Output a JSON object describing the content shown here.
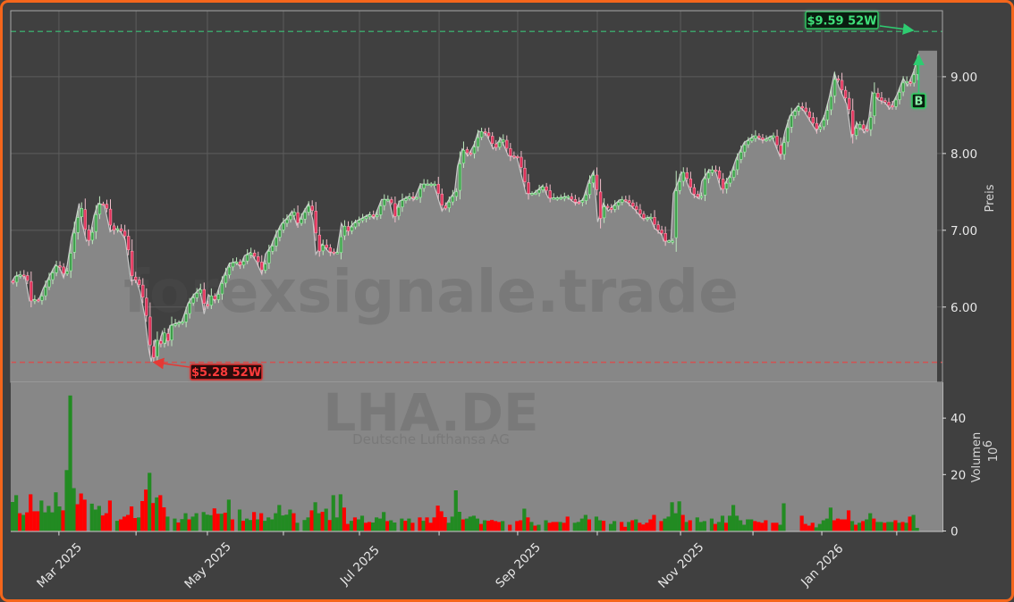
{
  "chart": {
    "watermark": "forexsignale.trade",
    "ticker_watermark": "LHA.DE",
    "company_watermark": "Deutsche Lufthansa AG"
  },
  "chart_data": [
    {
      "type": "area",
      "overlay": "candlestick",
      "title": "LHA.DE",
      "subtitle": "Deutsche Lufthansa AG",
      "xlabel": "",
      "ylabel": "Preis",
      "ylim": [
        5.02,
        9.86
      ],
      "grid": true,
      "y_tick_values": [
        6,
        7,
        8,
        9
      ],
      "y_ticks": [
        "6.00",
        "7.00",
        "8.00",
        "9.00"
      ],
      "x_ticks": [
        13.2,
        34.6,
        54.4,
        75.5,
        96.6,
        118.7,
        140.5,
        162.6,
        185.7,
        205.8,
        224.9,
        245.7
      ],
      "x_tick_labels": [
        "Mar 2025",
        "",
        "May 2025",
        "",
        "Jul 2025",
        "",
        "Sep 2025",
        "",
        "Nov 2025",
        "",
        "Jan 2026",
        ""
      ],
      "close_points": [
        [
          0,
          6.32
        ],
        [
          1,
          6.4
        ],
        [
          2.2,
          6.42
        ],
        [
          3.8,
          6.4
        ],
        [
          5,
          6.08
        ],
        [
          6.3,
          6.1
        ],
        [
          7.5,
          6.08
        ],
        [
          8.8,
          6.24
        ],
        [
          10.5,
          6.4
        ],
        [
          12.2,
          6.55
        ],
        [
          13.4,
          6.51
        ],
        [
          14.5,
          6.38
        ],
        [
          15.5,
          6.55
        ],
        [
          16.7,
          6.91
        ],
        [
          17.5,
          7.05
        ],
        [
          18.8,
          7.35
        ],
        [
          19.6,
          7.09
        ],
        [
          20.8,
          6.86
        ],
        [
          21.7,
          6.9
        ],
        [
          22.9,
          7.19
        ],
        [
          24.1,
          7.35
        ],
        [
          25.8,
          7.33
        ],
        [
          27.4,
          6.98
        ],
        [
          28.7,
          7.03
        ],
        [
          30.3,
          6.98
        ],
        [
          31.6,
          6.88
        ],
        [
          33.2,
          6.34
        ],
        [
          34.5,
          6.36
        ],
        [
          35.7,
          6.2
        ],
        [
          37,
          5.89
        ],
        [
          38.2,
          5.43
        ],
        [
          38.8,
          5.29
        ],
        [
          39.9,
          5.58
        ],
        [
          40.7,
          5.47
        ],
        [
          41.9,
          5.68
        ],
        [
          42.8,
          5.52
        ],
        [
          44,
          5.76
        ],
        [
          45.7,
          5.79
        ],
        [
          47.3,
          5.81
        ],
        [
          49,
          6.05
        ],
        [
          50.6,
          6.16
        ],
        [
          52.3,
          6.24
        ],
        [
          53.5,
          5.91
        ],
        [
          54.7,
          6.16
        ],
        [
          56.4,
          6.08
        ],
        [
          58.1,
          6.32
        ],
        [
          60.5,
          6.57
        ],
        [
          62.2,
          6.59
        ],
        [
          63.4,
          6.53
        ],
        [
          64.7,
          6.67
        ],
        [
          66.3,
          6.71
        ],
        [
          68,
          6.59
        ],
        [
          69.5,
          6.43
        ],
        [
          70.5,
          6.69
        ],
        [
          72.1,
          6.8
        ],
        [
          73.3,
          6.94
        ],
        [
          75,
          7.09
        ],
        [
          76.7,
          7.17
        ],
        [
          77.9,
          7.25
        ],
        [
          79.2,
          7.07
        ],
        [
          81.2,
          7.25
        ],
        [
          82.5,
          7.35
        ],
        [
          83.7,
          7.13
        ],
        [
          84.5,
          6.69
        ],
        [
          86.2,
          6.82
        ],
        [
          88.2,
          6.71
        ],
        [
          90.3,
          6.71
        ],
        [
          91.6,
          7.09
        ],
        [
          92.8,
          6.98
        ],
        [
          95.3,
          7.11
        ],
        [
          97.8,
          7.17
        ],
        [
          99.4,
          7.21
        ],
        [
          100.6,
          7.15
        ],
        [
          102.7,
          7.4
        ],
        [
          104.8,
          7.4
        ],
        [
          105.9,
          7.17
        ],
        [
          107.7,
          7.38
        ],
        [
          110.2,
          7.44
        ],
        [
          111.8,
          7.4
        ],
        [
          113.5,
          7.6
        ],
        [
          115.5,
          7.6
        ],
        [
          117.2,
          7.6
        ],
        [
          118,
          7.48
        ],
        [
          119.5,
          7.25
        ],
        [
          121.7,
          7.42
        ],
        [
          123,
          7.5
        ],
        [
          123.8,
          7.83
        ],
        [
          125.1,
          8.06
        ],
        [
          126.7,
          7.97
        ],
        [
          128.4,
          8.12
        ],
        [
          129.6,
          8.29
        ],
        [
          131.7,
          8.26
        ],
        [
          133.7,
          8.06
        ],
        [
          135.8,
          8.2
        ],
        [
          137.9,
          7.97
        ],
        [
          140.3,
          7.95
        ],
        [
          142.8,
          7.48
        ],
        [
          144.9,
          7.48
        ],
        [
          147.4,
          7.58
        ],
        [
          149,
          7.42
        ],
        [
          151.5,
          7.42
        ],
        [
          154,
          7.44
        ],
        [
          156.5,
          7.35
        ],
        [
          158.6,
          7.4
        ],
        [
          160.2,
          7.64
        ],
        [
          161.6,
          7.77
        ],
        [
          162.7,
          7.11
        ],
        [
          164.3,
          7.35
        ],
        [
          165.6,
          7.25
        ],
        [
          167.2,
          7.33
        ],
        [
          168.9,
          7.4
        ],
        [
          170.5,
          7.38
        ],
        [
          173,
          7.27
        ],
        [
          175.1,
          7.15
        ],
        [
          177.2,
          7.17
        ],
        [
          178.4,
          7.03
        ],
        [
          180.5,
          6.94
        ],
        [
          181,
          6.86
        ],
        [
          183,
          6.86
        ],
        [
          183.7,
          7.48
        ],
        [
          184.7,
          7.59
        ],
        [
          185.9,
          7.76
        ],
        [
          186.7,
          7.71
        ],
        [
          188.7,
          7.48
        ],
        [
          190.9,
          7.41
        ],
        [
          191.6,
          7.64
        ],
        [
          193.6,
          7.79
        ],
        [
          195.4,
          7.77
        ],
        [
          196.9,
          7.53
        ],
        [
          199.6,
          7.73
        ],
        [
          201.1,
          7.93
        ],
        [
          203.3,
          8.14
        ],
        [
          206,
          8.23
        ],
        [
          208.5,
          8.17
        ],
        [
          211,
          8.23
        ],
        [
          213.2,
          7.97
        ],
        [
          214.7,
          8.29
        ],
        [
          216,
          8.49
        ],
        [
          218.2,
          8.62
        ],
        [
          219.7,
          8.57
        ],
        [
          223.4,
          8.29
        ],
        [
          225.6,
          8.49
        ],
        [
          226.9,
          8.72
        ],
        [
          228.4,
          9.05
        ],
        [
          229.6,
          8.87
        ],
        [
          231.8,
          8.64
        ],
        [
          233.1,
          8.22
        ],
        [
          234.6,
          8.4
        ],
        [
          236.8,
          8.27
        ],
        [
          238,
          8.47
        ],
        [
          238.8,
          8.8
        ],
        [
          240.5,
          8.7
        ],
        [
          242.5,
          8.66
        ],
        [
          243.7,
          8.58
        ],
        [
          245.7,
          8.76
        ],
        [
          247.5,
          8.98
        ],
        [
          248.7,
          8.88
        ],
        [
          250.4,
          9.07
        ],
        [
          251.7,
          9.3
        ]
      ],
      "projection": {
        "level": 9.34,
        "to_index": 256.9
      },
      "annotations": {
        "high_52w": {
          "value": 9.59,
          "label": "$9.59 52W",
          "color": "#2ecc71"
        },
        "low_52w": {
          "value": 5.28,
          "label": "$5.28 52W",
          "color": "#e53935"
        },
        "buy_signal": {
          "label": "B",
          "color": "#2ecc71"
        }
      },
      "colors": {
        "background": "#404040",
        "area_fill": "#878787",
        "line": "#c8c8c8",
        "candle_up": "#3d9e4a",
        "candle_down": "#e0315a"
      }
    },
    {
      "type": "bar",
      "xlabel": "",
      "ylabel": "Volumen",
      "yunit_base": "10",
      "yunit_exp": "6",
      "ylim": [
        0,
        52.7
      ],
      "y_tick_values": [
        0,
        20,
        40
      ],
      "y_ticks": [
        "0",
        "20",
        "40"
      ],
      "values": [
        10.3,
        12.7,
        6.3,
        5.7,
        6.6,
        13.0,
        7.0,
        7.0,
        10.8,
        6.6,
        8.9,
        6.6,
        13.7,
        8.7,
        7.3,
        21.6,
        48.0,
        15.2,
        9.5,
        13.3,
        11.1,
        null,
        9.7,
        7.6,
        8.9,
        5.5,
        6.3,
        10.8,
        null,
        3.6,
        4.1,
        5.1,
        5.7,
        8.7,
        4.6,
        4.8,
        10.6,
        14.7,
        20.6,
        9.9,
        11.9,
        12.7,
        8.4,
        5.1,
        null,
        4.4,
        3.0,
        4.2,
        6.3,
        4.1,
        5.1,
        6.3,
        null,
        6.7,
        5.8,
        5.6,
        8.0,
        6.1,
        6.1,
        6.5,
        11.1,
        4.1,
        null,
        7.6,
        3.6,
        4.4,
        3.9,
        6.7,
        4.1,
        6.3,
        3.6,
        4.8,
        4.1,
        6.3,
        9.2,
        5.5,
        5.8,
        7.6,
        6.3,
        2.9,
        null,
        3.9,
        4.8,
        7.3,
        10.2,
        6.3,
        6.8,
        7.9,
        3.9,
        12.7,
        4.8,
        13.0,
        8.3,
        2.5,
        3.6,
        4.8,
        4.1,
        5.4,
        2.9,
        3.2,
        3.0,
        4.8,
        4.4,
        6.7,
        3.5,
        3.8,
        3.0,
        null,
        4.4,
        3.6,
        4.4,
        2.9,
        null,
        4.8,
        3.6,
        4.8,
        2.9,
        4.8,
        9.0,
        7.0,
        4.9,
        2.9,
        5.1,
        14.4,
        6.8,
        4.1,
        4.4,
        5.1,
        5.4,
        4.4,
        2.5,
        3.8,
        3.6,
        3.9,
        3.5,
        3.2,
        3.5,
        null,
        2.2,
        null,
        3.5,
        3.8,
        7.9,
        4.8,
        3.2,
        1.9,
        2.2,
        null,
        3.8,
        2.9,
        3.2,
        3.2,
        3.2,
        2.9,
        5.1,
        null,
        2.9,
        3.2,
        4.4,
        5.7,
        4.1,
        null,
        5.1,
        3.8,
        3.6,
        null,
        2.5,
        3.5,
        null,
        3.2,
        1.5,
        3.2,
        3.8,
        4.1,
        2.9,
        2.3,
        2.9,
        4.1,
        5.7,
        null,
        3.5,
        4.4,
        5.1,
        10.2,
        6.3,
        10.5,
        5.7,
        3.2,
        3.8,
        null,
        4.8,
        3.2,
        3.5,
        null,
        4.4,
        2.5,
        3.2,
        5.4,
        2.9,
        5.4,
        9.2,
        5.4,
        3.8,
        2.2,
        4.1,
        4.1,
        3.5,
        3.2,
        2.9,
        3.8,
        null,
        2.9,
        2.9,
        2.2,
        9.8,
        null,
        null,
        null,
        null,
        5.4,
        2.5,
        1.9,
        2.9,
        1.3,
        2.5,
        3.8,
        4.4,
        8.3,
        3.8,
        4.4,
        4.1,
        4.1,
        7.3,
        3.5,
        2.2,
        2.9,
        3.5,
        4.1,
        6.3,
        4.4,
        3.2,
        3.2,
        2.9,
        3.2,
        3.2,
        3.8,
        2.9,
        3.2,
        2.9,
        5.1,
        5.7,
        1.1
      ],
      "direction": "uududddduuuuuuduuudd d-uuuddd-uddddduddududdu-uduuduu-uuuddudud-uduudud uuuuuuuudu-uuduududuuudduduudduuuuduu-udud-duddddd duuuuduuuududdddu-d-ddududu-udddudd-uuuud-uud-uu-ddududdddd-duuuuudud-uuu-uduuduuuuuuudddd-dduu----dddduuuuudd dddududuuduuduudud ud",
      "colors": {
        "up": "#228b22",
        "down": "#ff0000",
        "panel": "#878787"
      }
    }
  ]
}
